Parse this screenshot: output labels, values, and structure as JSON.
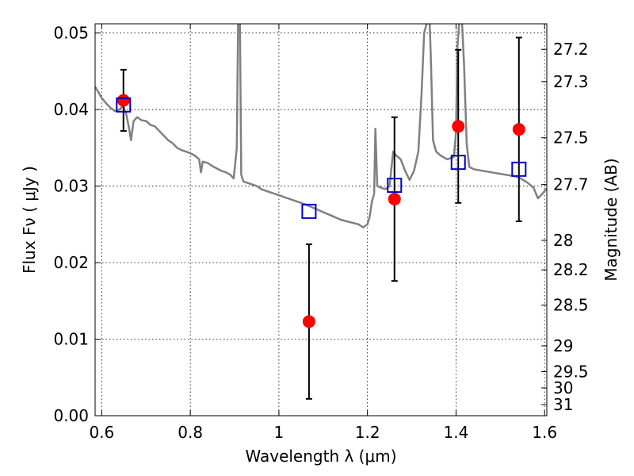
{
  "chart_data": {
    "type": "scatter",
    "xlabel": "Wavelength  λ (μm)",
    "ylabel": "Flux  Fν  ( μJy )",
    "y2label": "Magnitude (AB)",
    "xlim": [
      0.585,
      1.605
    ],
    "ylim": [
      0.0,
      0.0512
    ],
    "grid": true,
    "x_ticks": [
      {
        "value": 0.6,
        "label": "0.6"
      },
      {
        "value": 0.8,
        "label": "0.8"
      },
      {
        "value": 1.0,
        "label": "1"
      },
      {
        "value": 1.2,
        "label": "1.2"
      },
      {
        "value": 1.4,
        "label": "1.4"
      },
      {
        "value": 1.6,
        "label": "1.6"
      }
    ],
    "y_ticks": [
      {
        "value": 0.0,
        "label": "0.00"
      },
      {
        "value": 0.01,
        "label": "0.01"
      },
      {
        "value": 0.02,
        "label": "0.02"
      },
      {
        "value": 0.03,
        "label": "0.03"
      },
      {
        "value": 0.04,
        "label": "0.04"
      },
      {
        "value": 0.05,
        "label": "0.05"
      }
    ],
    "magnitude_ticks": [
      {
        "value": 27.2,
        "label": "27.2"
      },
      {
        "value": 27.3,
        "label": "27.3"
      },
      {
        "value": 27.5,
        "label": "27.5"
      },
      {
        "value": 27.7,
        "label": "27.7"
      },
      {
        "value": 28.0,
        "label": "28"
      },
      {
        "value": 28.2,
        "label": "28.2"
      },
      {
        "value": 28.5,
        "label": "28.5"
      },
      {
        "value": 29.0,
        "label": "29"
      },
      {
        "value": 29.5,
        "label": "29.5"
      },
      {
        "value": 30.0,
        "label": "30"
      },
      {
        "value": 31.0,
        "label": "31"
      }
    ],
    "template_spectrum": {
      "color": "#808080",
      "points": [
        [
          0.585,
          0.043
        ],
        [
          0.59,
          0.0425
        ],
        [
          0.6,
          0.0415
        ],
        [
          0.61,
          0.0408
        ],
        [
          0.62,
          0.0402
        ],
        [
          0.63,
          0.0398
        ],
        [
          0.64,
          0.04
        ],
        [
          0.648,
          0.0405
        ],
        [
          0.655,
          0.0395
        ],
        [
          0.662,
          0.0375
        ],
        [
          0.666,
          0.036
        ],
        [
          0.672,
          0.0385
        ],
        [
          0.68,
          0.039
        ],
        [
          0.69,
          0.0386
        ],
        [
          0.7,
          0.0385
        ],
        [
          0.71,
          0.038
        ],
        [
          0.72,
          0.0378
        ],
        [
          0.73,
          0.0372
        ],
        [
          0.74,
          0.0366
        ],
        [
          0.75,
          0.036
        ],
        [
          0.76,
          0.0356
        ],
        [
          0.77,
          0.035
        ],
        [
          0.78,
          0.0347
        ],
        [
          0.79,
          0.0345
        ],
        [
          0.8,
          0.0343
        ],
        [
          0.81,
          0.034
        ],
        [
          0.82,
          0.0335
        ],
        [
          0.824,
          0.0318
        ],
        [
          0.828,
          0.0332
        ],
        [
          0.84,
          0.033
        ],
        [
          0.85,
          0.0326
        ],
        [
          0.86,
          0.0323
        ],
        [
          0.87,
          0.032
        ],
        [
          0.88,
          0.0318
        ],
        [
          0.89,
          0.0315
        ],
        [
          0.898,
          0.031
        ],
        [
          0.905,
          0.035
        ],
        [
          0.908,
          0.052
        ],
        [
          0.912,
          0.052
        ],
        [
          0.915,
          0.0315
        ],
        [
          0.92,
          0.0306
        ],
        [
          0.93,
          0.0304
        ],
        [
          0.94,
          0.0302
        ],
        [
          0.95,
          0.03
        ],
        [
          0.96,
          0.0296
        ],
        [
          0.98,
          0.0292
        ],
        [
          1.0,
          0.0288
        ],
        [
          1.02,
          0.0284
        ],
        [
          1.04,
          0.028
        ],
        [
          1.06,
          0.0276
        ],
        [
          1.08,
          0.0271
        ],
        [
          1.1,
          0.0266
        ],
        [
          1.12,
          0.0261
        ],
        [
          1.14,
          0.0256
        ],
        [
          1.16,
          0.0253
        ],
        [
          1.18,
          0.025
        ],
        [
          1.19,
          0.0246
        ],
        [
          1.2,
          0.025
        ],
        [
          1.205,
          0.026
        ],
        [
          1.21,
          0.028
        ],
        [
          1.215,
          0.029
        ],
        [
          1.218,
          0.0375
        ],
        [
          1.222,
          0.03
        ],
        [
          1.23,
          0.0298
        ],
        [
          1.24,
          0.0296
        ],
        [
          1.25,
          0.03
        ],
        [
          1.258,
          0.0345
        ],
        [
          1.265,
          0.034
        ],
        [
          1.275,
          0.0335
        ],
        [
          1.285,
          0.032
        ],
        [
          1.295,
          0.0308
        ],
        [
          1.305,
          0.032
        ],
        [
          1.315,
          0.0345
        ],
        [
          1.322,
          0.042
        ],
        [
          1.328,
          0.05
        ],
        [
          1.335,
          0.0515
        ],
        [
          1.34,
          0.052
        ],
        [
          1.343,
          0.047
        ],
        [
          1.348,
          0.036
        ],
        [
          1.355,
          0.0345
        ],
        [
          1.365,
          0.034
        ],
        [
          1.38,
          0.0335
        ],
        [
          1.395,
          0.0338
        ],
        [
          1.4,
          0.037
        ],
        [
          1.403,
          0.048
        ],
        [
          1.408,
          0.052
        ],
        [
          1.413,
          0.052
        ],
        [
          1.418,
          0.046
        ],
        [
          1.424,
          0.0355
        ],
        [
          1.43,
          0.0325
        ],
        [
          1.44,
          0.0322
        ],
        [
          1.46,
          0.032
        ],
        [
          1.48,
          0.0318
        ],
        [
          1.5,
          0.0316
        ],
        [
          1.52,
          0.0314
        ],
        [
          1.54,
          0.0312
        ],
        [
          1.56,
          0.0305
        ],
        [
          1.575,
          0.0298
        ],
        [
          1.585,
          0.0284
        ],
        [
          1.595,
          0.029
        ],
        [
          1.605,
          0.0297
        ]
      ]
    },
    "series": [
      {
        "marker": "circle",
        "color": "#ff0000",
        "points": [
          {
            "x": 0.649,
            "y": 0.0412,
            "yerr": 0.004
          },
          {
            "x": 1.068,
            "y": 0.0123,
            "yerr": 0.0101
          },
          {
            "x": 1.261,
            "y": 0.0283,
            "yerr": 0.0107
          },
          {
            "x": 1.405,
            "y": 0.0378,
            "yerr": 0.01
          },
          {
            "x": 1.542,
            "y": 0.0374,
            "yerr": 0.012
          }
        ]
      },
      {
        "marker": "square",
        "color": "#0000cc",
        "points": [
          {
            "x": 0.649,
            "y": 0.0406
          },
          {
            "x": 1.068,
            "y": 0.0267
          },
          {
            "x": 1.261,
            "y": 0.0301
          },
          {
            "x": 1.405,
            "y": 0.0331
          },
          {
            "x": 1.542,
            "y": 0.0322
          }
        ]
      }
    ]
  }
}
